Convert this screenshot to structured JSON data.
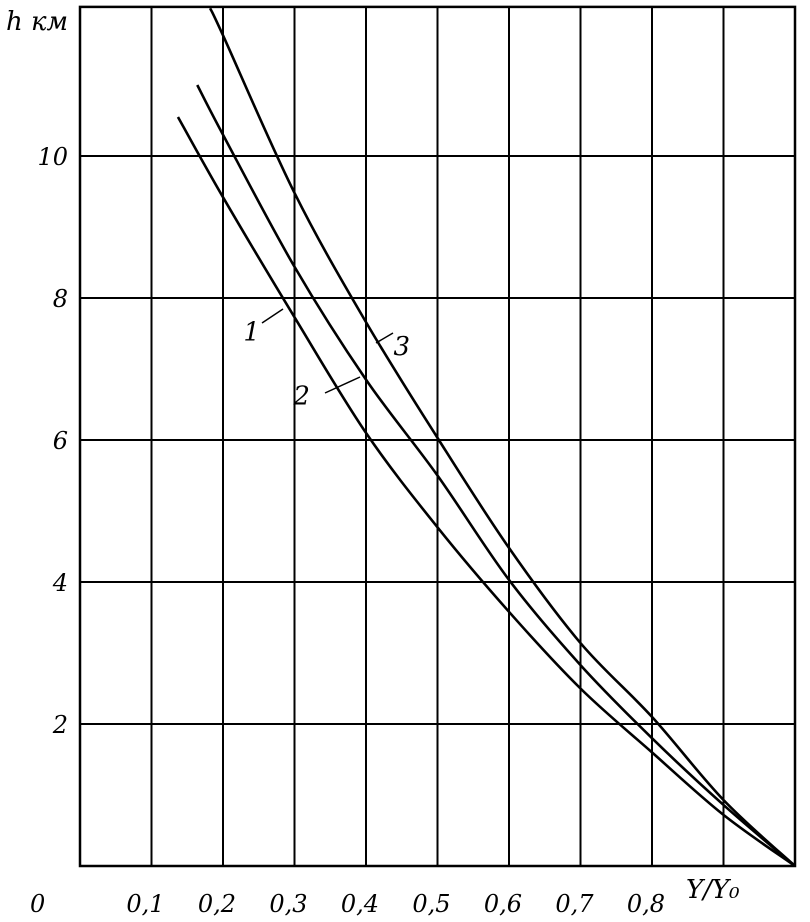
{
  "chart_data": {
    "type": "line",
    "title": "",
    "xlabel": "Y/Y₀",
    "ylabel": "h км",
    "xlim": [
      0,
      1.0
    ],
    "ylim": [
      0,
      12.1
    ],
    "grid": true,
    "x_ticks": [
      "0",
      "0,1",
      "0,2",
      "0,3",
      "0,4",
      "0,5",
      "0,6",
      "0,7",
      "0,8"
    ],
    "y_ticks": [
      "2",
      "4",
      "6",
      "8",
      "10"
    ],
    "y_tick_values": [
      2,
      4,
      6,
      8,
      10
    ],
    "origin_label": "0",
    "series": [
      {
        "name": "1",
        "x": [
          0.137,
          0.2,
          0.3,
          0.4,
          0.5,
          0.6,
          0.7,
          0.8,
          0.9,
          1.0
        ],
        "y": [
          10.55,
          9.42,
          7.73,
          6.1,
          4.77,
          3.58,
          2.5,
          1.6,
          0.72,
          0
        ]
      },
      {
        "name": "2",
        "x": [
          0.164,
          0.2,
          0.3,
          0.4,
          0.5,
          0.6,
          0.7,
          0.8,
          0.9,
          1.0
        ],
        "y": [
          11.0,
          10.3,
          8.44,
          6.85,
          5.5,
          4.03,
          2.83,
          1.8,
          0.86,
          0
        ]
      },
      {
        "name": "3",
        "x": [
          0.182,
          0.2,
          0.3,
          0.4,
          0.5,
          0.6,
          0.7,
          0.8,
          0.9,
          1.0
        ],
        "y": [
          12.08,
          11.7,
          9.48,
          7.66,
          6.03,
          4.48,
          3.14,
          2.1,
          0.93,
          0
        ]
      }
    ],
    "curve_labels": [
      {
        "text": "1",
        "x": 0.24,
        "y": 7.4
      },
      {
        "text": "2",
        "x": 0.31,
        "y": 6.5
      },
      {
        "text": "3",
        "x": 0.45,
        "y": 7.2
      }
    ],
    "line_color": "#000000",
    "background": "#ffffff"
  }
}
